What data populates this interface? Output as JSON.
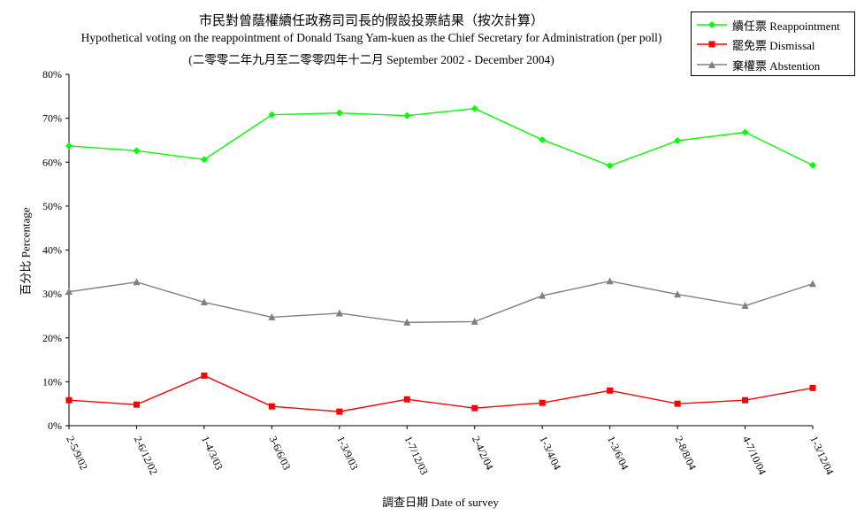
{
  "chart_data": {
    "type": "line",
    "title": "市民對曾蔭權續任政務司司長的假設投票結果（按次計算）",
    "subtitle": "Hypothetical voting on the reappointment of Donald Tsang Yam-kuen as the Chief Secretary for Administration (per poll)",
    "subtitle2": "(二零零二年九月至二零零四年十二月 September 2002 - December 2004)",
    "xlabel": "調查日期 Date of survey",
    "ylabel": "百分比 Percentage",
    "categories": [
      "2-5/9/02",
      "2-6/12/02",
      "1-4/3/03",
      "3-6/6/03",
      "1-3/9/03",
      "1-7/12/03",
      "2-4/2/04",
      "1-3/4/04",
      "1-3/6/04",
      "2-8/8/04",
      "4-7/10/04",
      "1-3/12/04"
    ],
    "ylim": [
      0,
      80
    ],
    "yticks": [
      "0%",
      "10%",
      "20%",
      "30%",
      "40%",
      "50%",
      "60%",
      "70%",
      "80%"
    ],
    "legend_position": "top-right",
    "grid": false,
    "series": [
      {
        "name": "續任票 Reappointment",
        "color": "#00ff00",
        "marker": "diamond",
        "values": [
          63.7,
          62.6,
          60.6,
          70.8,
          71.2,
          70.6,
          72.2,
          65.1,
          59.2,
          64.9,
          66.8,
          59.3
        ]
      },
      {
        "name": "罷免票 Dismissal",
        "color": "#ff0000",
        "marker": "square",
        "values": [
          5.8,
          4.8,
          11.4,
          4.4,
          3.2,
          6.0,
          4.0,
          5.2,
          8.0,
          5.0,
          5.8,
          8.6
        ]
      },
      {
        "name": "棄權票 Abstention",
        "color": "#808080",
        "marker": "triangle",
        "values": [
          30.5,
          32.7,
          28.1,
          24.7,
          25.6,
          23.5,
          23.7,
          29.6,
          32.9,
          29.9,
          27.3,
          32.3
        ]
      }
    ]
  }
}
